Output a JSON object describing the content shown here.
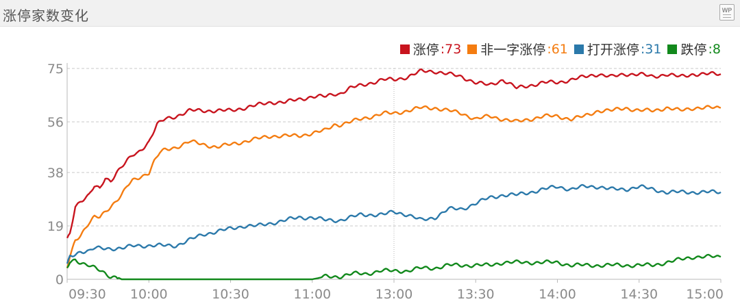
{
  "header": {
    "title": "涨停家数变化",
    "icon": "wp-icon",
    "icon_label": "WP"
  },
  "chart_data": {
    "type": "line",
    "title": "涨停家数变化",
    "x_ticks": [
      "09:30",
      "10:00",
      "10:30",
      "11:00",
      "13:00",
      "13:30",
      "14:00",
      "14:30",
      "15:00"
    ],
    "y_ticks": [
      0,
      19,
      38,
      56,
      75
    ],
    "ylim": [
      0,
      75
    ],
    "grid": "horizontal dashed + vertical dotted at 13:00",
    "legend_position": "top-right",
    "series": [
      {
        "name": "涨停",
        "value_label": ":73",
        "color": "#c8141e",
        "points": [
          [
            0,
            14
          ],
          [
            1,
            16
          ],
          [
            3,
            26
          ],
          [
            5,
            28
          ],
          [
            8,
            30
          ],
          [
            10,
            33
          ],
          [
            12,
            32
          ],
          [
            14,
            36
          ],
          [
            16,
            35
          ],
          [
            18,
            38
          ],
          [
            20,
            40
          ],
          [
            22,
            42
          ],
          [
            24,
            44
          ],
          [
            26,
            45
          ],
          [
            28,
            47
          ],
          [
            30,
            49
          ],
          [
            33,
            55
          ],
          [
            36,
            57
          ],
          [
            40,
            58
          ],
          [
            45,
            60
          ],
          [
            50,
            60
          ],
          [
            55,
            60
          ],
          [
            60,
            60
          ],
          [
            65,
            61
          ],
          [
            70,
            62
          ],
          [
            75,
            63
          ],
          [
            80,
            63
          ],
          [
            85,
            64
          ],
          [
            90,
            65
          ],
          [
            95,
            65
          ],
          [
            98,
            66
          ],
          [
            100,
            66
          ],
          [
            104,
            68
          ],
          [
            108,
            69
          ],
          [
            112,
            70
          ],
          [
            116,
            71
          ],
          [
            120,
            71
          ],
          [
            125,
            72
          ],
          [
            130,
            74
          ],
          [
            135,
            74
          ],
          [
            140,
            73
          ],
          [
            145,
            72
          ],
          [
            150,
            70
          ],
          [
            155,
            69
          ],
          [
            160,
            71
          ],
          [
            165,
            68
          ],
          [
            170,
            69
          ],
          [
            175,
            70
          ],
          [
            180,
            70
          ],
          [
            185,
            71
          ],
          [
            190,
            72
          ],
          [
            195,
            73
          ],
          [
            200,
            72
          ],
          [
            205,
            73
          ],
          [
            210,
            73
          ],
          [
            215,
            72
          ],
          [
            220,
            73
          ],
          [
            225,
            72
          ],
          [
            230,
            73
          ],
          [
            235,
            73
          ],
          [
            240,
            73
          ]
        ]
      },
      {
        "name": "非一字涨停",
        "value_label": ":61",
        "color": "#f47c10",
        "points": [
          [
            0,
            4
          ],
          [
            1,
            8
          ],
          [
            3,
            14
          ],
          [
            5,
            16
          ],
          [
            8,
            20
          ],
          [
            10,
            22
          ],
          [
            12,
            22
          ],
          [
            14,
            24
          ],
          [
            16,
            26
          ],
          [
            18,
            28
          ],
          [
            20,
            30
          ],
          [
            22,
            33
          ],
          [
            24,
            35
          ],
          [
            26,
            36
          ],
          [
            28,
            37
          ],
          [
            30,
            38
          ],
          [
            32,
            42
          ],
          [
            34,
            45
          ],
          [
            36,
            46
          ],
          [
            40,
            47
          ],
          [
            45,
            49
          ],
          [
            50,
            48
          ],
          [
            55,
            47
          ],
          [
            60,
            48
          ],
          [
            65,
            49
          ],
          [
            70,
            50
          ],
          [
            75,
            51
          ],
          [
            80,
            51
          ],
          [
            85,
            51
          ],
          [
            90,
            52
          ],
          [
            95,
            53
          ],
          [
            98,
            55
          ],
          [
            100,
            55
          ],
          [
            104,
            56
          ],
          [
            108,
            57
          ],
          [
            112,
            58
          ],
          [
            116,
            59
          ],
          [
            120,
            59
          ],
          [
            125,
            60
          ],
          [
            130,
            61
          ],
          [
            135,
            61
          ],
          [
            140,
            60
          ],
          [
            145,
            59
          ],
          [
            150,
            57
          ],
          [
            155,
            58
          ],
          [
            160,
            57
          ],
          [
            165,
            56
          ],
          [
            170,
            57
          ],
          [
            175,
            58
          ],
          [
            180,
            58
          ],
          [
            185,
            57
          ],
          [
            190,
            58
          ],
          [
            195,
            60
          ],
          [
            200,
            60
          ],
          [
            205,
            61
          ],
          [
            210,
            60
          ],
          [
            215,
            60
          ],
          [
            220,
            61
          ],
          [
            225,
            60
          ],
          [
            230,
            61
          ],
          [
            235,
            61
          ],
          [
            240,
            61
          ]
        ]
      },
      {
        "name": "打开涨停",
        "value_label": ":31",
        "color": "#2b79aa",
        "points": [
          [
            0,
            5
          ],
          [
            1,
            8
          ],
          [
            3,
            9
          ],
          [
            5,
            10
          ],
          [
            8,
            10
          ],
          [
            10,
            11
          ],
          [
            12,
            11
          ],
          [
            15,
            11
          ],
          [
            20,
            11
          ],
          [
            25,
            12
          ],
          [
            30,
            12
          ],
          [
            35,
            12
          ],
          [
            40,
            12
          ],
          [
            45,
            14
          ],
          [
            50,
            16
          ],
          [
            55,
            17
          ],
          [
            60,
            18
          ],
          [
            65,
            19
          ],
          [
            70,
            19
          ],
          [
            75,
            20
          ],
          [
            80,
            21
          ],
          [
            85,
            22
          ],
          [
            90,
            22
          ],
          [
            95,
            21
          ],
          [
            100,
            21
          ],
          [
            104,
            22
          ],
          [
            108,
            23
          ],
          [
            112,
            23
          ],
          [
            116,
            23
          ],
          [
            120,
            24
          ],
          [
            125,
            23
          ],
          [
            130,
            21
          ],
          [
            135,
            22
          ],
          [
            140,
            25
          ],
          [
            145,
            25
          ],
          [
            150,
            27
          ],
          [
            155,
            29
          ],
          [
            160,
            30
          ],
          [
            165,
            30
          ],
          [
            170,
            31
          ],
          [
            175,
            32
          ],
          [
            180,
            33
          ],
          [
            185,
            32
          ],
          [
            190,
            33
          ],
          [
            195,
            33
          ],
          [
            200,
            32
          ],
          [
            205,
            32
          ],
          [
            210,
            33
          ],
          [
            215,
            32
          ],
          [
            220,
            31
          ],
          [
            225,
            31
          ],
          [
            230,
            31
          ],
          [
            235,
            31
          ],
          [
            240,
            31
          ]
        ]
      },
      {
        "name": "跌停",
        "value_label": ":8",
        "color": "#12891c",
        "points": [
          [
            0,
            4
          ],
          [
            1,
            6
          ],
          [
            3,
            7
          ],
          [
            5,
            6
          ],
          [
            8,
            5
          ],
          [
            10,
            4
          ],
          [
            12,
            3
          ],
          [
            14,
            2
          ],
          [
            16,
            1
          ],
          [
            18,
            1
          ],
          [
            20,
            0
          ],
          [
            30,
            0
          ],
          [
            40,
            0
          ],
          [
            50,
            0
          ],
          [
            60,
            0
          ],
          [
            70,
            0
          ],
          [
            80,
            0
          ],
          [
            90,
            0
          ],
          [
            95,
            1
          ],
          [
            100,
            1
          ],
          [
            105,
            2
          ],
          [
            110,
            2
          ],
          [
            115,
            3
          ],
          [
            120,
            3
          ],
          [
            125,
            3
          ],
          [
            130,
            4
          ],
          [
            135,
            4
          ],
          [
            140,
            5
          ],
          [
            145,
            5
          ],
          [
            150,
            5
          ],
          [
            155,
            5
          ],
          [
            160,
            6
          ],
          [
            165,
            6
          ],
          [
            170,
            6
          ],
          [
            175,
            6
          ],
          [
            180,
            6
          ],
          [
            185,
            5
          ],
          [
            190,
            5
          ],
          [
            195,
            5
          ],
          [
            200,
            5
          ],
          [
            205,
            5
          ],
          [
            210,
            5
          ],
          [
            215,
            5
          ],
          [
            220,
            6
          ],
          [
            225,
            7
          ],
          [
            230,
            8
          ],
          [
            235,
            8
          ],
          [
            240,
            8
          ]
        ]
      }
    ]
  }
}
